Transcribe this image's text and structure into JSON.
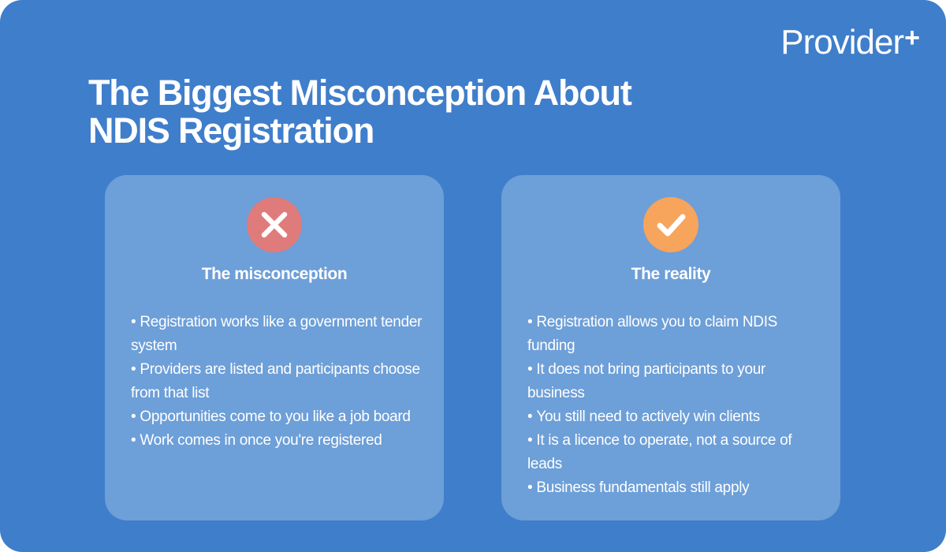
{
  "brand": {
    "name": "Provider",
    "suffix": "+"
  },
  "headline": "The Biggest Misconception About NDIS Registration",
  "cards": {
    "misconception": {
      "icon": "cross-icon",
      "badge_color": "#e07b7b",
      "title": "The misconception",
      "points": [
        "Registration works like a government tender system",
        "Providers are listed and participants choose from that list",
        "Opportunities come to you like a job board",
        "Work comes in once you're registered"
      ]
    },
    "reality": {
      "icon": "check-icon",
      "badge_color": "#f7a45c",
      "title": "The reality",
      "points": [
        "Registration allows you to claim NDIS funding",
        "It does not bring participants to your business",
        "You still need to actively win clients",
        "It is a licence to operate, not a source of leads",
        "Business fundamentals still apply"
      ]
    }
  },
  "colors": {
    "background": "#3f7ecb",
    "card": "#6d9fd8",
    "text": "#ffffff"
  }
}
